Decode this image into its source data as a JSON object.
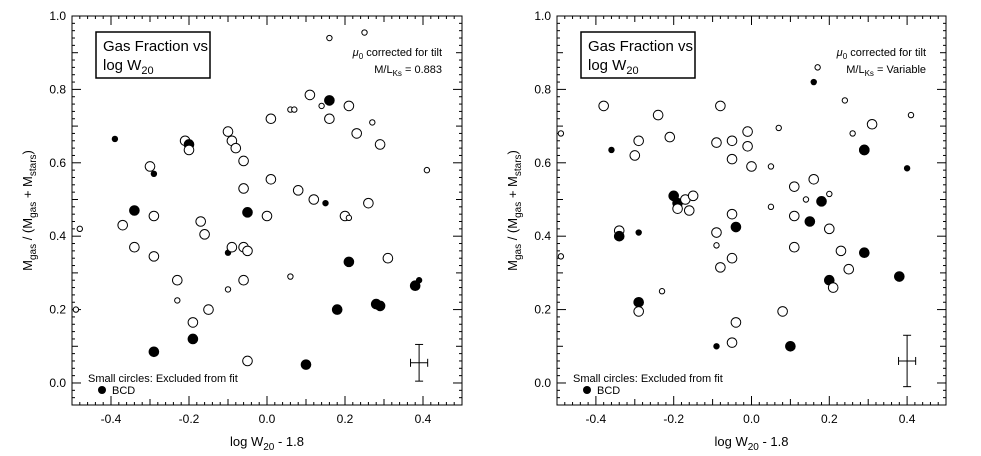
{
  "chart_data": [
    {
      "type": "scatter",
      "title": "Gas Fraction vs log W",
      "title_line1": "Gas Fraction vs",
      "title_line2": "log W",
      "title_sub": "20",
      "annotation_line1_pre": "μ",
      "annotation_line1_sub": "0",
      "annotation_line1_post": " corrected for tilt",
      "annotation_line2_pre": "M/L",
      "annotation_line2_sub": "Ks",
      "annotation_line2_post": " = 0.883",
      "xlabel_pre": "log W",
      "xlabel_sub": "20",
      "xlabel_post": " - 1.8",
      "ylabel": "Mgas / (Mgas + Mstars)",
      "ylabel_parts": [
        "M",
        "gas",
        " / (M",
        "gas",
        " + M",
        "stars",
        ")"
      ],
      "xlim": [
        -0.5,
        0.5
      ],
      "ylim": [
        -0.06,
        1.0
      ],
      "xticks": [
        "-0.4",
        "-0.2",
        "0.0",
        "0.2",
        "0.4"
      ],
      "yticks": [
        "0.0",
        "0.2",
        "0.4",
        "0.6",
        "0.8",
        "1.0"
      ],
      "legend_small": "Small circles:  Excluded from fit",
      "legend_bcd": "BCD",
      "error_bar": {
        "x": 0.39,
        "y": 0.055,
        "xerr": 0.022,
        "yerr": 0.05
      },
      "points": [
        {
          "x": -0.48,
          "y": 0.42,
          "filled": false,
          "small": true
        },
        {
          "x": -0.49,
          "y": 0.2,
          "filled": false,
          "small": true
        },
        {
          "x": -0.39,
          "y": 0.665,
          "filled": true,
          "small": true
        },
        {
          "x": -0.37,
          "y": 0.43,
          "filled": false,
          "small": false
        },
        {
          "x": -0.34,
          "y": 0.47,
          "filled": true,
          "small": false
        },
        {
          "x": -0.34,
          "y": 0.37,
          "filled": false,
          "small": false
        },
        {
          "x": -0.3,
          "y": 0.59,
          "filled": false,
          "small": false
        },
        {
          "x": -0.29,
          "y": 0.57,
          "filled": true,
          "small": true
        },
        {
          "x": -0.29,
          "y": 0.455,
          "filled": false,
          "small": false
        },
        {
          "x": -0.29,
          "y": 0.345,
          "filled": false,
          "small": false
        },
        {
          "x": -0.29,
          "y": 0.085,
          "filled": true,
          "small": false
        },
        {
          "x": -0.23,
          "y": 0.28,
          "filled": false,
          "small": false
        },
        {
          "x": -0.23,
          "y": 0.225,
          "filled": false,
          "small": true
        },
        {
          "x": -0.21,
          "y": 0.66,
          "filled": false,
          "small": false
        },
        {
          "x": -0.2,
          "y": 0.65,
          "filled": true,
          "small": false
        },
        {
          "x": -0.2,
          "y": 0.635,
          "filled": false,
          "small": false
        },
        {
          "x": -0.19,
          "y": 0.165,
          "filled": false,
          "small": false
        },
        {
          "x": -0.19,
          "y": 0.12,
          "filled": true,
          "small": false
        },
        {
          "x": -0.17,
          "y": 0.44,
          "filled": false,
          "small": false
        },
        {
          "x": -0.16,
          "y": 0.405,
          "filled": false,
          "small": false
        },
        {
          "x": -0.15,
          "y": 0.2,
          "filled": false,
          "small": false
        },
        {
          "x": -0.1,
          "y": 0.685,
          "filled": false,
          "small": false
        },
        {
          "x": -0.09,
          "y": 0.66,
          "filled": false,
          "small": false
        },
        {
          "x": -0.08,
          "y": 0.64,
          "filled": false,
          "small": false
        },
        {
          "x": -0.1,
          "y": 0.355,
          "filled": true,
          "small": true
        },
        {
          "x": -0.09,
          "y": 0.37,
          "filled": false,
          "small": false
        },
        {
          "x": -0.1,
          "y": 0.255,
          "filled": false,
          "small": true
        },
        {
          "x": -0.06,
          "y": 0.605,
          "filled": false,
          "small": false
        },
        {
          "x": -0.06,
          "y": 0.53,
          "filled": false,
          "small": false
        },
        {
          "x": -0.06,
          "y": 0.37,
          "filled": false,
          "small": false
        },
        {
          "x": -0.05,
          "y": 0.36,
          "filled": false,
          "small": false
        },
        {
          "x": -0.06,
          "y": 0.28,
          "filled": false,
          "small": false
        },
        {
          "x": -0.05,
          "y": 0.465,
          "filled": true,
          "small": false
        },
        {
          "x": -0.05,
          "y": 0.06,
          "filled": false,
          "small": false
        },
        {
          "x": 0.0,
          "y": 0.455,
          "filled": false,
          "small": false
        },
        {
          "x": 0.01,
          "y": 0.72,
          "filled": false,
          "small": false
        },
        {
          "x": 0.01,
          "y": 0.555,
          "filled": false,
          "small": false
        },
        {
          "x": 0.06,
          "y": 0.745,
          "filled": false,
          "small": true
        },
        {
          "x": 0.07,
          "y": 0.745,
          "filled": false,
          "small": true
        },
        {
          "x": 0.06,
          "y": 0.29,
          "filled": false,
          "small": true
        },
        {
          "x": 0.08,
          "y": 0.525,
          "filled": false,
          "small": false
        },
        {
          "x": 0.1,
          "y": 0.05,
          "filled": true,
          "small": false
        },
        {
          "x": 0.11,
          "y": 0.785,
          "filled": false,
          "small": false
        },
        {
          "x": 0.12,
          "y": 0.5,
          "filled": false,
          "small": false
        },
        {
          "x": 0.14,
          "y": 0.755,
          "filled": false,
          "small": true
        },
        {
          "x": 0.15,
          "y": 0.49,
          "filled": true,
          "small": true
        },
        {
          "x": 0.16,
          "y": 0.77,
          "filled": true,
          "small": false
        },
        {
          "x": 0.16,
          "y": 0.72,
          "filled": false,
          "small": false
        },
        {
          "x": 0.16,
          "y": 0.94,
          "filled": false,
          "small": true
        },
        {
          "x": 0.18,
          "y": 0.2,
          "filled": true,
          "small": false
        },
        {
          "x": 0.2,
          "y": 0.455,
          "filled": false,
          "small": false
        },
        {
          "x": 0.21,
          "y": 0.45,
          "filled": false,
          "small": true
        },
        {
          "x": 0.21,
          "y": 0.755,
          "filled": false,
          "small": false
        },
        {
          "x": 0.21,
          "y": 0.33,
          "filled": true,
          "small": false
        },
        {
          "x": 0.23,
          "y": 0.68,
          "filled": false,
          "small": false
        },
        {
          "x": 0.25,
          "y": 0.955,
          "filled": false,
          "small": true
        },
        {
          "x": 0.26,
          "y": 0.49,
          "filled": false,
          "small": false
        },
        {
          "x": 0.27,
          "y": 0.71,
          "filled": false,
          "small": true
        },
        {
          "x": 0.28,
          "y": 0.215,
          "filled": true,
          "small": false
        },
        {
          "x": 0.29,
          "y": 0.21,
          "filled": true,
          "small": false
        },
        {
          "x": 0.29,
          "y": 0.65,
          "filled": false,
          "small": false
        },
        {
          "x": 0.31,
          "y": 0.34,
          "filled": false,
          "small": false
        },
        {
          "x": 0.38,
          "y": 0.265,
          "filled": true,
          "small": false
        },
        {
          "x": 0.39,
          "y": 0.28,
          "filled": true,
          "small": true
        },
        {
          "x": 0.41,
          "y": 0.58,
          "filled": false,
          "small": true
        }
      ]
    },
    {
      "type": "scatter",
      "title": "Gas Fraction vs log W",
      "title_line1": "Gas Fraction vs",
      "title_line2": "log W",
      "title_sub": "20",
      "annotation_line1_pre": "μ",
      "annotation_line1_sub": "0",
      "annotation_line1_post": " corrected for tilt",
      "annotation_line2_pre": "M/L",
      "annotation_line2_sub": "Ks",
      "annotation_line2_post": " = Variable",
      "xlabel_pre": "log W",
      "xlabel_sub": "20",
      "xlabel_post": " - 1.8",
      "ylabel": "Mgas / (Mgas + Mstars)",
      "ylabel_parts": [
        "M",
        "gas",
        " / (M",
        "gas",
        " + M",
        "stars",
        ")"
      ],
      "xlim": [
        -0.5,
        0.5
      ],
      "ylim": [
        -0.06,
        1.0
      ],
      "xticks": [
        "-0.4",
        "-0.2",
        "0.0",
        "0.2",
        "0.4"
      ],
      "yticks": [
        "0.0",
        "0.2",
        "0.4",
        "0.6",
        "0.8",
        "1.0"
      ],
      "legend_small": "Small circles:  Excluded from fit",
      "legend_bcd": "BCD",
      "error_bar": {
        "x": 0.4,
        "y": 0.06,
        "xerr": 0.022,
        "yerr": 0.07
      },
      "points": [
        {
          "x": -0.49,
          "y": 0.68,
          "filled": false,
          "small": true
        },
        {
          "x": -0.49,
          "y": 0.345,
          "filled": false,
          "small": true
        },
        {
          "x": -0.38,
          "y": 0.755,
          "filled": false,
          "small": false
        },
        {
          "x": -0.36,
          "y": 0.635,
          "filled": true,
          "small": true
        },
        {
          "x": -0.34,
          "y": 0.415,
          "filled": false,
          "small": false
        },
        {
          "x": -0.34,
          "y": 0.4,
          "filled": true,
          "small": false
        },
        {
          "x": -0.3,
          "y": 0.62,
          "filled": false,
          "small": false
        },
        {
          "x": -0.29,
          "y": 0.66,
          "filled": false,
          "small": false
        },
        {
          "x": -0.29,
          "y": 0.41,
          "filled": true,
          "small": true
        },
        {
          "x": -0.29,
          "y": 0.22,
          "filled": true,
          "small": false
        },
        {
          "x": -0.29,
          "y": 0.195,
          "filled": false,
          "small": false
        },
        {
          "x": -0.24,
          "y": 0.73,
          "filled": false,
          "small": false
        },
        {
          "x": -0.23,
          "y": 0.25,
          "filled": false,
          "small": true
        },
        {
          "x": -0.21,
          "y": 0.67,
          "filled": false,
          "small": false
        },
        {
          "x": -0.2,
          "y": 0.51,
          "filled": true,
          "small": false
        },
        {
          "x": -0.19,
          "y": 0.49,
          "filled": true,
          "small": false
        },
        {
          "x": -0.19,
          "y": 0.475,
          "filled": false,
          "small": false
        },
        {
          "x": -0.17,
          "y": 0.5,
          "filled": false,
          "small": false
        },
        {
          "x": -0.16,
          "y": 0.47,
          "filled": false,
          "small": false
        },
        {
          "x": -0.15,
          "y": 0.51,
          "filled": false,
          "small": false
        },
        {
          "x": -0.09,
          "y": 0.655,
          "filled": false,
          "small": false
        },
        {
          "x": -0.08,
          "y": 0.755,
          "filled": false,
          "small": false
        },
        {
          "x": -0.09,
          "y": 0.41,
          "filled": false,
          "small": false
        },
        {
          "x": -0.09,
          "y": 0.375,
          "filled": false,
          "small": true
        },
        {
          "x": -0.08,
          "y": 0.315,
          "filled": false,
          "small": false
        },
        {
          "x": -0.09,
          "y": 0.1,
          "filled": true,
          "small": true
        },
        {
          "x": -0.05,
          "y": 0.66,
          "filled": false,
          "small": false
        },
        {
          "x": -0.05,
          "y": 0.61,
          "filled": false,
          "small": false
        },
        {
          "x": -0.05,
          "y": 0.46,
          "filled": false,
          "small": false
        },
        {
          "x": -0.05,
          "y": 0.34,
          "filled": false,
          "small": false
        },
        {
          "x": -0.04,
          "y": 0.425,
          "filled": true,
          "small": false
        },
        {
          "x": -0.04,
          "y": 0.165,
          "filled": false,
          "small": false
        },
        {
          "x": -0.05,
          "y": 0.11,
          "filled": false,
          "small": false
        },
        {
          "x": -0.01,
          "y": 0.685,
          "filled": false,
          "small": false
        },
        {
          "x": -0.01,
          "y": 0.645,
          "filled": false,
          "small": false
        },
        {
          "x": 0.0,
          "y": 0.59,
          "filled": false,
          "small": false
        },
        {
          "x": 0.05,
          "y": 0.59,
          "filled": false,
          "small": true
        },
        {
          "x": 0.05,
          "y": 0.48,
          "filled": false,
          "small": true
        },
        {
          "x": 0.07,
          "y": 0.695,
          "filled": false,
          "small": true
        },
        {
          "x": 0.08,
          "y": 0.195,
          "filled": false,
          "small": false
        },
        {
          "x": 0.1,
          "y": 0.1,
          "filled": true,
          "small": false
        },
        {
          "x": 0.11,
          "y": 0.535,
          "filled": false,
          "small": false
        },
        {
          "x": 0.11,
          "y": 0.455,
          "filled": false,
          "small": false
        },
        {
          "x": 0.11,
          "y": 0.37,
          "filled": false,
          "small": false
        },
        {
          "x": 0.14,
          "y": 0.5,
          "filled": false,
          "small": true
        },
        {
          "x": 0.15,
          "y": 0.44,
          "filled": true,
          "small": false
        },
        {
          "x": 0.16,
          "y": 0.82,
          "filled": true,
          "small": true
        },
        {
          "x": 0.16,
          "y": 0.555,
          "filled": false,
          "small": false
        },
        {
          "x": 0.17,
          "y": 0.86,
          "filled": false,
          "small": true
        },
        {
          "x": 0.18,
          "y": 0.495,
          "filled": true,
          "small": false
        },
        {
          "x": 0.2,
          "y": 0.515,
          "filled": false,
          "small": true
        },
        {
          "x": 0.2,
          "y": 0.42,
          "filled": false,
          "small": false
        },
        {
          "x": 0.2,
          "y": 0.28,
          "filled": true,
          "small": false
        },
        {
          "x": 0.21,
          "y": 0.26,
          "filled": false,
          "small": false
        },
        {
          "x": 0.23,
          "y": 0.36,
          "filled": false,
          "small": false
        },
        {
          "x": 0.24,
          "y": 0.77,
          "filled": false,
          "small": true
        },
        {
          "x": 0.25,
          "y": 0.31,
          "filled": false,
          "small": false
        },
        {
          "x": 0.26,
          "y": 0.68,
          "filled": false,
          "small": true
        },
        {
          "x": 0.29,
          "y": 0.355,
          "filled": true,
          "small": false
        },
        {
          "x": 0.29,
          "y": 0.635,
          "filled": false,
          "small": false
        },
        {
          "x": 0.29,
          "y": 0.635,
          "filled": true,
          "small": false
        },
        {
          "x": 0.31,
          "y": 0.705,
          "filled": false,
          "small": false
        },
        {
          "x": 0.38,
          "y": 0.29,
          "filled": true,
          "small": false
        },
        {
          "x": 0.4,
          "y": 0.585,
          "filled": true,
          "small": true
        },
        {
          "x": 0.41,
          "y": 0.73,
          "filled": false,
          "small": true
        }
      ]
    }
  ]
}
